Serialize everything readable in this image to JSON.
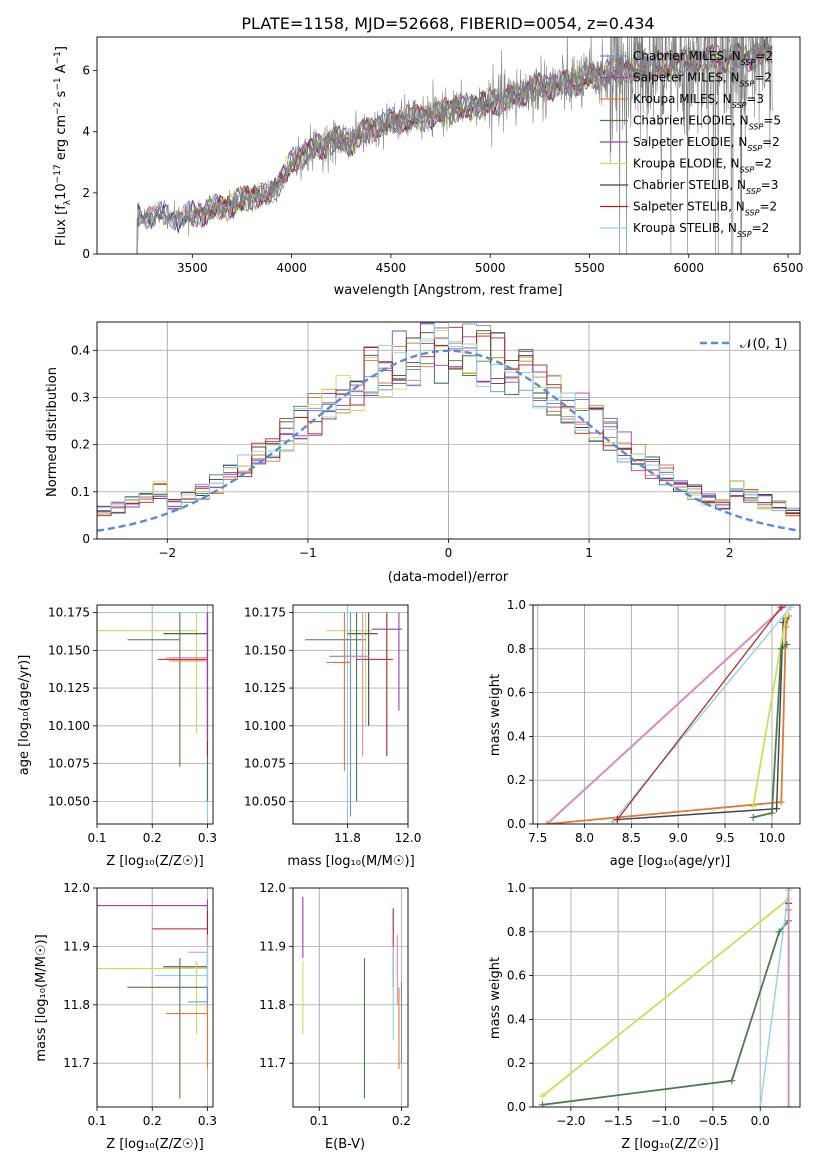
{
  "colors": [
    "#6a8fd8",
    "#9a9a9a",
    "#e07b39",
    "#4f7a4f",
    "#9b3fb6",
    "#c8e05a",
    "#444444",
    "#b22222",
    "#8fd3e6",
    "#d98ac0"
  ],
  "series_names": [
    [
      "Chabrier MILES, N",
      "SSP",
      "=2"
    ],
    [
      "Salpeter MILES, N",
      "SSP",
      "=2"
    ],
    [
      "Kroupa MILES, N",
      "SSP",
      "=3"
    ],
    [
      "Chabrier ELODIE, N",
      "SSP",
      "=5"
    ],
    [
      "Salpeter ELODIE, N",
      "SSP",
      "=2"
    ],
    [
      "Kroupa ELODIE, N",
      "SSP",
      "=2"
    ],
    [
      "Chabrier STELIB, N",
      "SSP",
      "=3"
    ],
    [
      "Salpeter STELIB, N",
      "SSP",
      "=2"
    ],
    [
      "Kroupa STELIB, N",
      "SSP",
      "=2"
    ]
  ],
  "chart_data": [
    {
      "id": "spectrum",
      "type": "line",
      "title": "PLATE=1158, MJD=52668, FIBERID=0054, z=0.434",
      "xlabel": "wavelength [Angstrom, rest frame]",
      "ylabel_parts": [
        "Flux [f",
        "λ",
        "10",
        "−17",
        " erg cm",
        "−2",
        " s",
        "−1",
        " A",
        "−1",
        "]"
      ],
      "xlim": [
        3020,
        6560
      ],
      "ylim": [
        0,
        7.1
      ],
      "xticks": [
        3500,
        4000,
        4500,
        5000,
        5500,
        6000,
        6500
      ],
      "yticks": [
        0,
        2,
        4,
        6
      ],
      "continuum": [
        [
          3200,
          0
        ],
        [
          3215,
          0
        ],
        [
          3225,
          1.2
        ],
        [
          3300,
          1.3
        ],
        [
          3400,
          1.2
        ],
        [
          3500,
          1.25
        ],
        [
          3600,
          1.45
        ],
        [
          3700,
          1.6
        ],
        [
          3800,
          1.9
        ],
        [
          3900,
          2.0
        ],
        [
          3950,
          2.4
        ],
        [
          4000,
          3.0
        ],
        [
          4100,
          3.4
        ],
        [
          4200,
          3.7
        ],
        [
          4300,
          3.7
        ],
        [
          4400,
          4.1
        ],
        [
          4500,
          4.3
        ],
        [
          4600,
          4.45
        ],
        [
          4700,
          4.5
        ],
        [
          4800,
          4.75
        ],
        [
          4900,
          4.8
        ],
        [
          5000,
          4.95
        ],
        [
          5100,
          5.1
        ],
        [
          5200,
          5.4
        ],
        [
          5300,
          5.5
        ],
        [
          5400,
          5.6
        ],
        [
          5500,
          5.75
        ],
        [
          5600,
          5.95
        ],
        [
          5700,
          6.05
        ],
        [
          5800,
          6.1
        ],
        [
          5900,
          6.2
        ],
        [
          6000,
          6.3
        ],
        [
          6100,
          6.4
        ],
        [
          6200,
          6.4
        ],
        [
          6300,
          6.45
        ],
        [
          6400,
          6.6
        ]
      ],
      "legend_position": "upper-right"
    },
    {
      "id": "residuals",
      "type": "line",
      "xlabel": "(data-model)/error",
      "ylabel": "Normed distribution",
      "xlim": [
        -2.5,
        2.5
      ],
      "ylim": [
        0,
        0.46
      ],
      "xticks": [
        -2,
        -1,
        0,
        1,
        2
      ],
      "yticks": [
        0.0,
        0.1,
        0.2,
        0.3,
        0.4
      ],
      "grid": true,
      "bin_width": 0.1,
      "normal_label": "𝒩(0, 1)",
      "normal_color": "#5b8bd6",
      "legend_position": "upper-right"
    },
    {
      "id": "age-vs-z",
      "type": "scatter",
      "xlabel": "Z [log₁₀(Z/Z☉)]",
      "ylabel": "age  [log₁₀(age/yr)]",
      "xlim": [
        0.1,
        0.31
      ],
      "ylim": [
        10.035,
        10.18
      ],
      "xticks": [
        0.1,
        0.2,
        0.3
      ],
      "xticklabels": [
        "0.1",
        "0.2",
        "0.3"
      ],
      "yticks": [
        10.05,
        10.075,
        10.1,
        10.125,
        10.15,
        10.175
      ],
      "yticklabels": [
        "10.050",
        "10.075",
        "10.100",
        "10.125",
        "10.150",
        "10.175"
      ],
      "grid": true,
      "points": [
        {
          "c": 0,
          "x": 0.3,
          "y": 10.175,
          "xerr": [
            0.3,
            0.3
          ],
          "yerr": [
            10.04,
            10.175
          ]
        },
        {
          "c": 8,
          "x": 0.3,
          "y": 10.175,
          "xerr": [
            0.2,
            0.3
          ],
          "yerr": [
            10.04,
            10.175
          ]
        },
        {
          "c": 5,
          "x": 0.28,
          "y": 10.163,
          "xerr": [
            0.1,
            0.28
          ],
          "yerr": [
            10.095,
            10.175
          ]
        },
        {
          "c": 6,
          "x": 0.3,
          "y": 10.161,
          "xerr": [
            0.22,
            0.3
          ],
          "yerr": [
            10.15,
            10.175
          ]
        },
        {
          "c": 3,
          "x": 0.25,
          "y": 10.157,
          "xerr": [
            0.155,
            0.25
          ],
          "yerr": [
            10.073,
            10.175
          ]
        },
        {
          "c": 3,
          "x": 0.3,
          "y": 10.157,
          "xerr": [
            0.3,
            0.3
          ],
          "yerr": [
            10.05,
            10.175
          ]
        },
        {
          "c": 7,
          "x": 0.3,
          "y": 10.144,
          "xerr": [
            0.21,
            0.3
          ],
          "yerr": [
            10.08,
            10.175
          ]
        },
        {
          "c": 2,
          "x": 0.3,
          "y": 10.143,
          "xerr": [
            0.23,
            0.3
          ],
          "yerr": [
            10.1,
            10.175
          ]
        },
        {
          "c": 9,
          "x": 0.3,
          "y": 10.145,
          "xerr": [
            0.225,
            0.3
          ],
          "yerr": [
            10.09,
            10.175
          ]
        },
        {
          "c": 4,
          "x": 0.3,
          "y": 10.145,
          "xerr": [
            0.3,
            0.3
          ],
          "yerr": [
            10.09,
            10.175
          ]
        }
      ]
    },
    {
      "id": "age-vs-mass",
      "type": "scatter",
      "xlabel": "mass [log₁₀(M/M☉)]",
      "xlim": [
        11.62,
        12.0
      ],
      "ylim": [
        10.035,
        10.18
      ],
      "xticks": [
        11.8,
        12.0
      ],
      "xticklabels": [
        "11.8",
        "12.0"
      ],
      "yticks": [
        10.05,
        10.075,
        10.1,
        10.125,
        10.15,
        10.175
      ],
      "yticklabels": [
        "10.050",
        "10.075",
        "10.100",
        "10.125",
        "10.150",
        "10.175"
      ],
      "grid": true,
      "points": [
        {
          "c": 8,
          "x": 11.8,
          "y": 10.175,
          "xerr": [
            11.7,
            11.85
          ],
          "yerr": [
            10.05,
            10.175
          ]
        },
        {
          "c": 4,
          "x": 11.97,
          "y": 10.164,
          "xerr": [
            11.88,
            11.98
          ],
          "yerr": [
            10.11,
            10.175
          ]
        },
        {
          "c": 5,
          "x": 11.86,
          "y": 10.163,
          "xerr": [
            11.73,
            11.88
          ],
          "yerr": [
            10.1,
            10.175
          ]
        },
        {
          "c": 6,
          "x": 11.87,
          "y": 10.161,
          "xerr": [
            11.8,
            11.9
          ],
          "yerr": [
            10.1,
            10.175
          ]
        },
        {
          "c": 3,
          "x": 11.83,
          "y": 10.157,
          "xerr": [
            11.66,
            11.86
          ],
          "yerr": [
            10.05,
            10.175
          ]
        },
        {
          "c": 0,
          "x": 11.81,
          "y": 10.146,
          "xerr": [
            11.74,
            11.86
          ],
          "yerr": [
            10.04,
            10.175
          ]
        },
        {
          "c": 7,
          "x": 11.93,
          "y": 10.144,
          "xerr": [
            11.83,
            11.95
          ],
          "yerr": [
            10.08,
            10.175
          ]
        },
        {
          "c": 2,
          "x": 11.79,
          "y": 10.142,
          "xerr": [
            11.73,
            11.81
          ],
          "yerr": [
            10.07,
            10.175
          ]
        },
        {
          "c": 9,
          "x": 11.85,
          "y": 10.146,
          "xerr": [
            11.78,
            11.87
          ],
          "yerr": [
            10.08,
            10.175
          ]
        }
      ]
    },
    {
      "id": "weight-vs-age",
      "type": "line",
      "xlabel": "age  [log₁₀(age/yr)]",
      "ylabel": "mass weight",
      "xlim": [
        7.45,
        10.3
      ],
      "ylim": [
        0,
        1.0
      ],
      "xticks": [
        7.5,
        8.0,
        8.5,
        9.0,
        9.5,
        10.0
      ],
      "xticklabels": [
        "7.5",
        "8.0",
        "8.5",
        "9.0",
        "9.5",
        "10.0"
      ],
      "yticks": [
        0.0,
        0.2,
        0.4,
        0.6,
        0.8,
        1.0
      ],
      "yticklabels": [
        "0.0",
        "0.2",
        "0.4",
        "0.6",
        "0.8",
        "1.0"
      ],
      "grid": true,
      "lines": [
        {
          "c": 9,
          "w": 2.0,
          "pts": [
            [
              7.6,
              0.0
            ],
            [
              10.15,
              1.0
            ]
          ]
        },
        {
          "c": 2,
          "w": 1.8,
          "pts": [
            [
              7.6,
              0.0
            ],
            [
              10.1,
              0.1
            ],
            [
              10.15,
              0.9
            ],
            [
              10.18,
              0.95
            ]
          ]
        },
        {
          "c": 8,
          "w": 1.4,
          "pts": [
            [
              8.3,
              0.01
            ],
            [
              10.2,
              0.99
            ]
          ]
        },
        {
          "c": 6,
          "w": 1.4,
          "pts": [
            [
              8.35,
              0.02
            ],
            [
              10.05,
              0.07
            ],
            [
              10.12,
              0.92
            ],
            [
              10.15,
              0.94
            ]
          ]
        },
        {
          "c": 5,
          "w": 1.8,
          "pts": [
            [
              9.8,
              0.08
            ],
            [
              10.15,
              0.95
            ]
          ]
        },
        {
          "c": 3,
          "w": 1.8,
          "pts": [
            [
              9.8,
              0.03
            ],
            [
              10.0,
              0.05
            ],
            [
              10.1,
              0.8
            ],
            [
              10.16,
              0.82
            ]
          ]
        },
        {
          "c": 7,
          "w": 1.2,
          "pts": [
            [
              8.35,
              0.02
            ],
            [
              10.1,
              0.99
            ]
          ]
        }
      ]
    },
    {
      "id": "mass-vs-z",
      "type": "scatter",
      "xlabel": "Z [log₁₀(Z/Z☉)]",
      "ylabel": "mass [log₁₀(M/M☉)]",
      "xlim": [
        0.1,
        0.31
      ],
      "ylim": [
        11.625,
        12.0
      ],
      "xticks": [
        0.1,
        0.2,
        0.3
      ],
      "xticklabels": [
        "0.1",
        "0.2",
        "0.3"
      ],
      "yticks": [
        11.7,
        11.8,
        11.9,
        12.0
      ],
      "yticklabels": [
        "11.7",
        "11.8",
        "11.9",
        "12.0"
      ],
      "grid": true,
      "points": [
        {
          "c": 4,
          "x": 0.3,
          "y": 11.97,
          "xerr": [
            0.1,
            0.3
          ],
          "yerr": [
            11.88,
            11.98
          ]
        },
        {
          "c": 7,
          "x": 0.3,
          "y": 11.93,
          "xerr": [
            0.2,
            0.3
          ],
          "yerr": [
            11.83,
            11.96
          ]
        },
        {
          "c": 9,
          "x": 0.3,
          "y": 11.89,
          "xerr": [
            0.265,
            0.3
          ],
          "yerr": [
            11.8,
            11.92
          ]
        },
        {
          "c": 6,
          "x": 0.3,
          "y": 11.865,
          "xerr": [
            0.22,
            0.3
          ],
          "yerr": [
            11.79,
            11.88
          ]
        },
        {
          "c": 5,
          "x": 0.28,
          "y": 11.862,
          "xerr": [
            0.1,
            0.3
          ],
          "yerr": [
            11.75,
            11.875
          ]
        },
        {
          "c": 8,
          "x": 0.3,
          "y": 11.85,
          "xerr": [
            0.205,
            0.3
          ],
          "yerr": [
            11.74,
            11.9
          ]
        },
        {
          "c": 3,
          "x": 0.25,
          "y": 11.83,
          "xerr": [
            0.155,
            0.3
          ],
          "yerr": [
            11.64,
            11.88
          ]
        },
        {
          "c": 0,
          "x": 0.3,
          "y": 11.805,
          "xerr": [
            0.265,
            0.3
          ],
          "yerr": [
            11.7,
            11.83
          ]
        },
        {
          "c": 2,
          "x": 0.3,
          "y": 11.785,
          "xerr": [
            0.225,
            0.3
          ],
          "yerr": [
            11.69,
            11.8
          ]
        }
      ]
    },
    {
      "id": "mass-vs-ebv",
      "type": "scatter",
      "xlabel": "E(B-V)",
      "xlim": [
        0.068,
        0.208
      ],
      "ylim": [
        11.625,
        12.0
      ],
      "xticks": [
        0.1,
        0.2
      ],
      "xticklabels": [
        "0.1",
        "0.2"
      ],
      "yticks": [
        11.7,
        11.8,
        11.9,
        12.0
      ],
      "yticklabels": [
        "11.7",
        "11.8",
        "11.9",
        "12.0"
      ],
      "grid": true,
      "points": [
        {
          "c": 4,
          "x": 0.08,
          "y": 11.93,
          "xerr": [
            0.08,
            0.08
          ],
          "yerr": [
            11.88,
            11.985
          ]
        },
        {
          "c": 5,
          "x": 0.08,
          "y": 11.82,
          "xerr": [
            0.08,
            0.08
          ],
          "yerr": [
            11.75,
            11.875
          ]
        },
        {
          "c": 3,
          "x": 0.155,
          "y": 11.8,
          "xerr": [
            0.155,
            0.155
          ],
          "yerr": [
            11.64,
            11.88
          ]
        },
        {
          "c": 7,
          "x": 0.19,
          "y": 11.92,
          "xerr": [
            0.19,
            0.19
          ],
          "yerr": [
            11.83,
            11.965
          ]
        },
        {
          "c": 9,
          "x": 0.195,
          "y": 11.85,
          "xerr": [
            0.195,
            0.195
          ],
          "yerr": [
            11.8,
            11.92
          ]
        },
        {
          "c": 8,
          "x": 0.19,
          "y": 11.83,
          "xerr": [
            0.19,
            0.19
          ],
          "yerr": [
            11.74,
            11.9
          ]
        },
        {
          "c": 2,
          "x": 0.197,
          "y": 11.8,
          "xerr": [
            0.197,
            0.197
          ],
          "yerr": [
            11.69,
            11.83
          ]
        },
        {
          "c": 0,
          "x": 0.2,
          "y": 11.78,
          "xerr": [
            0.2,
            0.2
          ],
          "yerr": [
            11.7,
            11.84
          ]
        }
      ]
    },
    {
      "id": "weight-vs-z",
      "type": "line",
      "xlabel": "Z [log₁₀(Z/Z☉)]",
      "ylabel": "mass weight",
      "xlim": [
        -2.4,
        0.42
      ],
      "ylim": [
        0,
        1.0
      ],
      "xticks": [
        -2.0,
        -1.5,
        -1.0,
        -0.5,
        0.0
      ],
      "xticklabels": [
        "−2.0",
        "−1.5",
        "−1.0",
        "−0.5",
        "0.0"
      ],
      "yticks": [
        0.0,
        0.2,
        0.4,
        0.6,
        0.8,
        1.0
      ],
      "yticklabels": [
        "0.0",
        "0.2",
        "0.4",
        "0.6",
        "0.8",
        "1.0"
      ],
      "grid": true,
      "lines": [
        {
          "c": 5,
          "w": 1.8,
          "pts": [
            [
              -2.3,
              0.05
            ],
            [
              0.3,
              0.95
            ]
          ]
        },
        {
          "c": 3,
          "w": 1.8,
          "pts": [
            [
              -2.3,
              0.01
            ],
            [
              -0.3,
              0.12
            ],
            [
              0.2,
              0.8
            ],
            [
              0.3,
              0.85
            ]
          ]
        },
        {
          "c": 8,
          "w": 1.4,
          "pts": [
            [
              0.0,
              0.0
            ],
            [
              0.3,
              0.99
            ]
          ]
        },
        {
          "c": 6,
          "w": 1.4,
          "pts": [
            [
              0.3,
              0.0
            ],
            [
              0.3,
              0.93
            ]
          ]
        },
        {
          "c": 2,
          "w": 1.4,
          "pts": [
            [
              0.3,
              0.0
            ],
            [
              0.3,
              0.9
            ]
          ]
        },
        {
          "c": 9,
          "w": 1.4,
          "pts": [
            [
              0.3,
              0.0
            ],
            [
              0.3,
              1.0
            ]
          ]
        }
      ]
    }
  ]
}
